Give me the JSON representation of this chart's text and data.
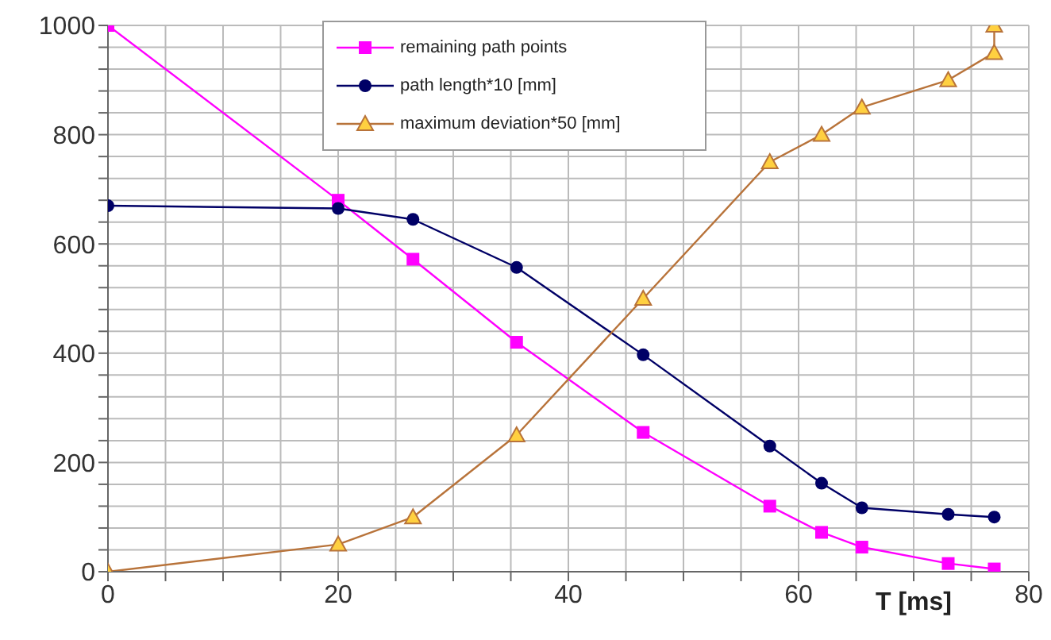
{
  "chart_data": {
    "type": "line",
    "xlabel": "T [ms]",
    "xlim": [
      0,
      80
    ],
    "xticks": [
      0,
      {
        "value": 5,
        "label": null
      },
      {
        "value": 10,
        "label": null
      },
      {
        "value": 15,
        "label": null
      },
      20,
      {
        "value": 25,
        "label": null
      },
      {
        "value": 30,
        "label": null
      },
      {
        "value": 35,
        "label": null
      },
      40,
      {
        "value": 45,
        "label": null
      },
      {
        "value": 50,
        "label": null
      },
      {
        "value": 55,
        "label": null
      },
      60,
      {
        "value": 65,
        "label": null
      },
      {
        "value": 70,
        "label": null
      },
      {
        "value": 75,
        "label": null
      },
      80
    ],
    "ylim": [
      0,
      1000
    ],
    "yticks": [
      0,
      {
        "value": 40,
        "label": null
      },
      {
        "value": 80,
        "label": null
      },
      {
        "value": 120,
        "label": null
      },
      {
        "value": 160,
        "label": null
      },
      200,
      {
        "value": 240,
        "label": null
      },
      {
        "value": 280,
        "label": null
      },
      {
        "value": 320,
        "label": null
      },
      {
        "value": 360,
        "label": null
      },
      400,
      {
        "value": 440,
        "label": null
      },
      {
        "value": 480,
        "label": null
      },
      {
        "value": 520,
        "label": null
      },
      {
        "value": 560,
        "label": null
      },
      600,
      {
        "value": 640,
        "label": null
      },
      {
        "value": 680,
        "label": null
      },
      {
        "value": 720,
        "label": null
      },
      {
        "value": 760,
        "label": null
      },
      800,
      {
        "value": 840,
        "label": null
      },
      {
        "value": 880,
        "label": null
      },
      {
        "value": 920,
        "label": null
      },
      {
        "value": 960,
        "label": null
      },
      1000
    ],
    "grid": true,
    "legend": "top",
    "series": [
      {
        "name": "remaining path points",
        "color": "#ff00ff",
        "marker": "square",
        "x": [
          0,
          20,
          26.5,
          35.5,
          46.5,
          57.5,
          62,
          65.5,
          73,
          77
        ],
        "values": [
          1000,
          680,
          572,
          420,
          255,
          120,
          72,
          45,
          15,
          5
        ]
      },
      {
        "name": "path length*10 [mm]",
        "color": "#000066",
        "marker": "circle",
        "x": [
          0,
          20,
          26.5,
          35.5,
          46.5,
          57.5,
          62,
          65.5,
          73,
          77
        ],
        "values": [
          670,
          665,
          645,
          557,
          397,
          230,
          162,
          117,
          105,
          100
        ]
      },
      {
        "name": "maximum deviation*50 [mm]",
        "color": "#b8733a",
        "marker": "triangle",
        "x": [
          0,
          20,
          26.5,
          35.5,
          46.5,
          57.5,
          62,
          65.5,
          73,
          77,
          77
        ],
        "values": [
          0,
          50,
          100,
          250,
          500,
          750,
          800,
          850,
          900,
          950,
          1000
        ]
      }
    ]
  }
}
